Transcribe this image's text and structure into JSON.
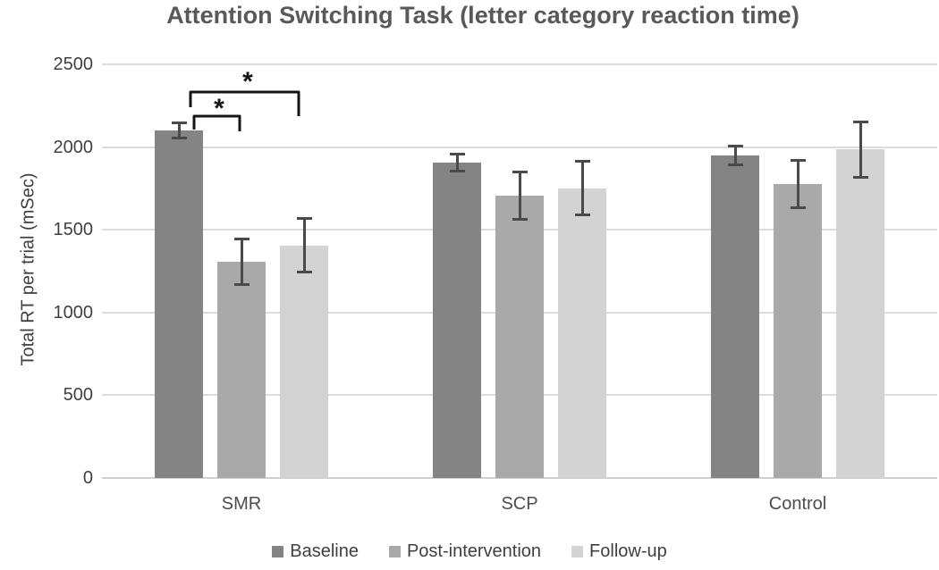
{
  "chart_data": {
    "type": "bar",
    "title": "Attention Switching Task (letter category reaction time)",
    "xlabel": "",
    "ylabel": "Total RT per trial (mSec)",
    "ylim": [
      0,
      2500
    ],
    "yticks": [
      0,
      500,
      1000,
      1500,
      2000,
      2500
    ],
    "grid": true,
    "legend_position": "bottom",
    "categories": [
      "SMR",
      "SCP",
      "Control"
    ],
    "series": [
      {
        "name": "Baseline",
        "color": "#848484",
        "values": [
          2100,
          1905,
          1950
        ],
        "errors": [
          55,
          60,
          65
        ]
      },
      {
        "name": "Post-intervention",
        "color": "#a9a9a9",
        "values": [
          1305,
          1705,
          1775
        ],
        "errors": [
          145,
          150,
          150
        ]
      },
      {
        "name": "Follow-up",
        "color": "#d3d3d3",
        "values": [
          1405,
          1750,
          1985
        ],
        "errors": [
          170,
          170,
          175
        ]
      }
    ],
    "annotations": [
      {
        "type": "significance-bracket",
        "label": "*",
        "group": "SMR",
        "between": [
          "Baseline",
          "Post-intervention"
        ]
      },
      {
        "type": "significance-bracket",
        "label": "*",
        "group": "SMR",
        "between": [
          "Baseline",
          "Follow-up"
        ]
      }
    ]
  },
  "colors": {
    "background": "#ffffff",
    "title_text": "#595959",
    "axis_text": "#404040",
    "gridline": "#dcdcdc",
    "axis_line": "#cfcfcf",
    "error_bar": "#4a4a4a",
    "bracket": "#141414"
  }
}
